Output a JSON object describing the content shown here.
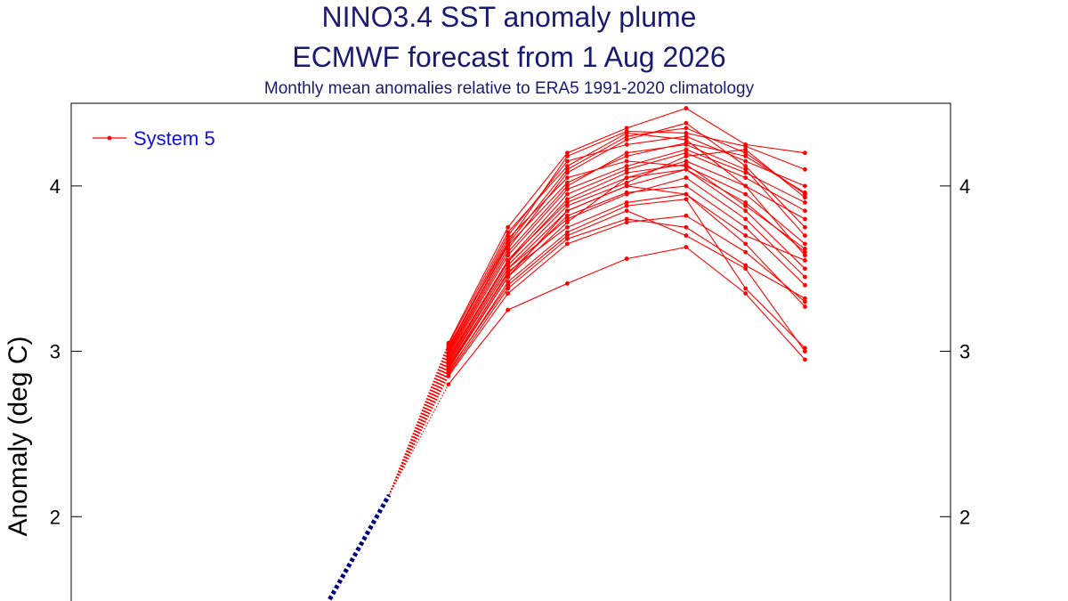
{
  "chart_data": {
    "type": "line",
    "title": "NINO3.4 SST anomaly plume",
    "subtitle": "ECMWF forecast from 1 Aug 2026",
    "caption": "Monthly mean anomalies relative to ERA5 1991-2020 climatology",
    "y_label": "Anomaly (deg C)",
    "x": [
      0,
      1,
      2,
      3,
      4,
      5,
      6,
      7,
      8
    ],
    "xlim": [
      -4.35,
      10.45
    ],
    "ylim": [
      1.49,
      4.5
    ],
    "yticks": [
      2,
      3,
      4
    ],
    "observed": {
      "color": "#000080",
      "values": [
        1.5,
        2.13,
        null,
        null,
        null,
        null,
        null,
        null,
        null
      ]
    },
    "series": [
      {
        "name": "System 5",
        "color": "#ff0000",
        "members": [
          [
            null,
            null,
            2.95,
            3.55,
            3.9,
            4.05,
            4.15,
            4.0,
            3.8
          ],
          [
            null,
            null,
            3.05,
            3.75,
            4.2,
            4.35,
            4.47,
            4.25,
            4.2
          ],
          [
            null,
            null,
            2.8,
            3.25,
            3.41,
            3.56,
            3.63,
            3.35,
            2.95
          ],
          [
            null,
            null,
            2.9,
            3.45,
            3.85,
            4.0,
            4.1,
            3.9,
            3.6
          ],
          [
            null,
            null,
            3.0,
            3.65,
            4.1,
            4.3,
            4.35,
            4.2,
            3.95
          ],
          [
            null,
            null,
            2.88,
            3.4,
            3.7,
            3.85,
            3.7,
            3.5,
            3.0
          ],
          [
            null,
            null,
            2.98,
            3.6,
            4.0,
            4.2,
            4.25,
            4.1,
            3.7
          ],
          [
            null,
            null,
            2.92,
            3.5,
            3.8,
            3.95,
            4.05,
            3.8,
            3.45
          ],
          [
            null,
            null,
            3.02,
            3.7,
            4.15,
            4.25,
            4.3,
            4.15,
            4.0
          ],
          [
            null,
            null,
            2.85,
            3.35,
            3.65,
            3.78,
            3.82,
            3.6,
            3.3
          ],
          [
            null,
            null,
            2.96,
            3.55,
            3.95,
            4.1,
            4.2,
            4.05,
            3.85
          ],
          [
            null,
            null,
            2.9,
            3.48,
            3.75,
            3.9,
            3.95,
            3.7,
            3.55
          ],
          [
            null,
            null,
            3.01,
            3.68,
            4.05,
            4.15,
            4.12,
            3.95,
            3.65
          ],
          [
            null,
            null,
            2.94,
            3.52,
            3.88,
            4.02,
            4.18,
            4.22,
            3.93
          ],
          [
            null,
            null,
            2.87,
            3.42,
            3.72,
            3.88,
            3.92,
            3.38,
            3.02
          ],
          [
            null,
            null,
            2.99,
            3.62,
            4.08,
            4.28,
            4.38,
            4.12,
            3.75
          ],
          [
            null,
            null,
            2.93,
            3.5,
            3.85,
            4.0,
            3.95,
            3.65,
            3.27
          ],
          [
            null,
            null,
            3.04,
            3.72,
            4.12,
            4.32,
            4.28,
            4.0,
            3.58
          ],
          [
            null,
            null,
            2.89,
            3.45,
            3.78,
            4.05,
            4.1,
            3.85,
            3.5
          ],
          [
            null,
            null,
            2.97,
            3.58,
            3.98,
            4.12,
            4.22,
            4.08,
            3.9
          ],
          [
            null,
            null,
            2.91,
            3.47,
            3.82,
            3.96,
            4.0,
            3.75,
            3.4
          ],
          [
            null,
            null,
            3.0,
            3.64,
            4.02,
            4.18,
            4.26,
            4.18,
            3.96
          ],
          [
            null,
            null,
            2.86,
            3.38,
            3.68,
            3.8,
            3.75,
            3.52,
            3.32
          ],
          [
            null,
            null,
            2.95,
            3.54,
            3.92,
            4.08,
            4.13,
            3.88,
            3.62
          ],
          [
            null,
            null,
            3.03,
            3.66,
            4.18,
            4.33,
            4.32,
            4.24,
            4.1
          ]
        ]
      }
    ]
  }
}
